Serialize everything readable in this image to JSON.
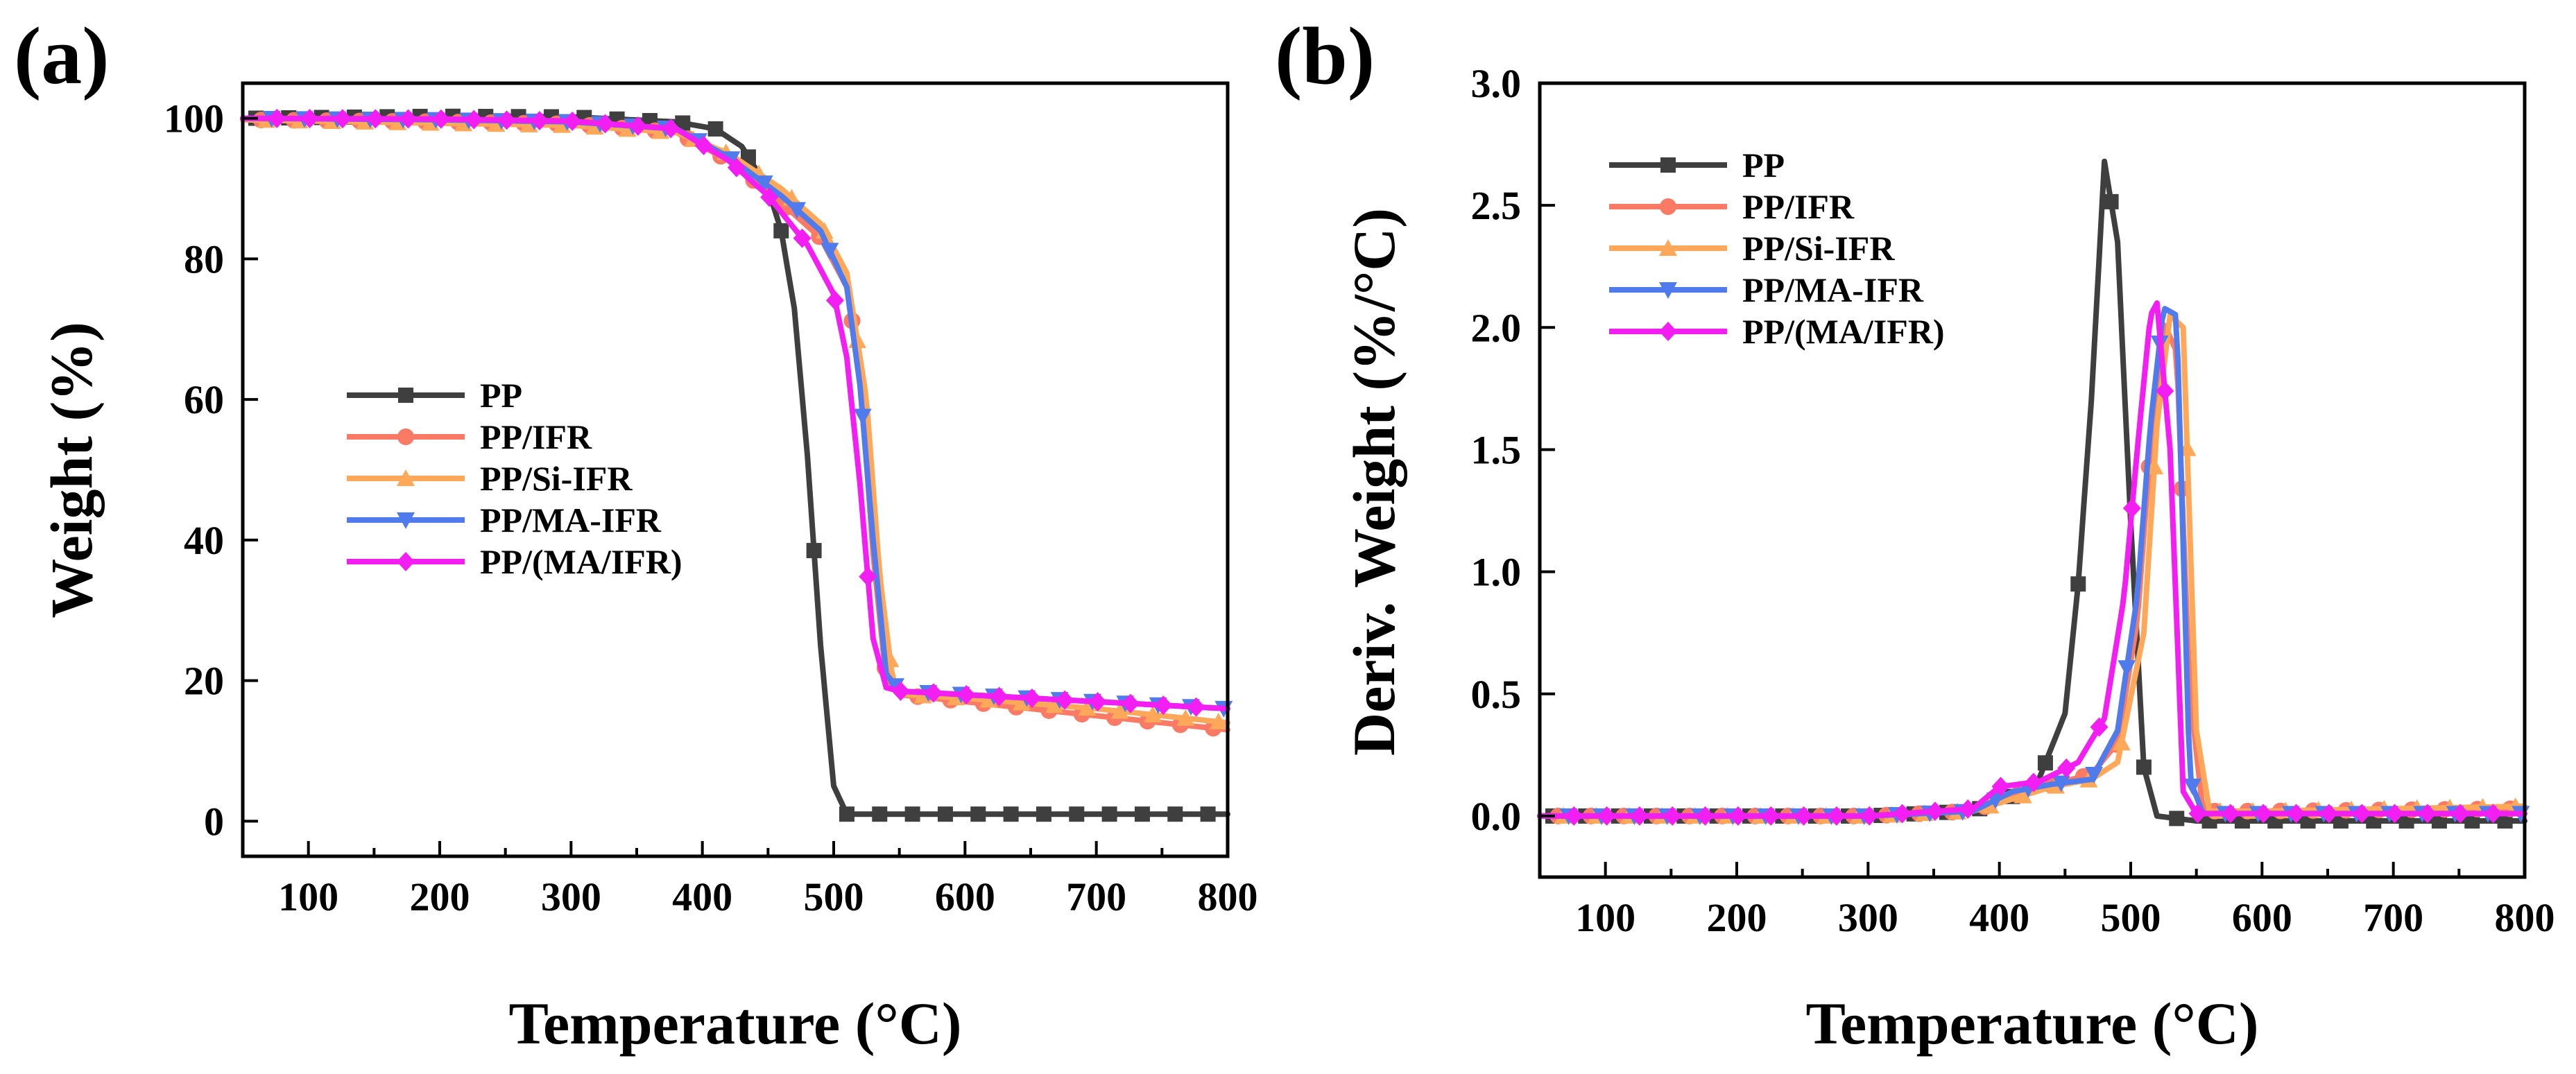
{
  "chart_data": [
    {
      "panel": "(a)",
      "type": "line",
      "xlabel": "Temperature (°C)",
      "ylabel": "Weight (%)",
      "xlim": [
        50,
        800
      ],
      "ylim": [
        -5,
        105
      ],
      "xticks": [
        100,
        200,
        300,
        400,
        500,
        600,
        700,
        800
      ],
      "yticks": [
        0,
        20,
        40,
        60,
        80,
        100
      ],
      "legend": "center-left",
      "series": [
        {
          "name": "PP",
          "color": "#3f3f3f",
          "marker": "square",
          "x": [
            50,
            200,
            300,
            380,
            410,
            430,
            450,
            460,
            470,
            480,
            490,
            500,
            510,
            530,
            600,
            700,
            800
          ],
          "y": [
            100,
            100.3,
            100.2,
            99.5,
            98.5,
            96,
            90,
            84,
            73,
            52,
            25,
            5,
            1,
            1,
            1,
            1,
            1
          ]
        },
        {
          "name": "PP/IFR",
          "color": "#fa7a66",
          "marker": "circle",
          "x": [
            50,
            200,
            300,
            380,
            420,
            460,
            490,
            510,
            520,
            530,
            540,
            550,
            600,
            700,
            800
          ],
          "y": [
            99.8,
            99.5,
            99.2,
            98,
            94,
            88,
            83,
            76,
            64,
            38,
            20,
            18,
            17,
            15,
            13
          ]
        },
        {
          "name": "PP/Si-IFR",
          "color": "#ffa85a",
          "marker": "triangle-up",
          "x": [
            50,
            200,
            300,
            380,
            420,
            460,
            490,
            510,
            525,
            535,
            545,
            555,
            600,
            700,
            800
          ],
          "y": [
            99.8,
            99.3,
            99,
            98,
            95,
            90,
            85,
            78,
            60,
            35,
            20,
            18,
            17.5,
            16,
            14
          ]
        },
        {
          "name": "PP/MA-IFR",
          "color": "#4f7bec",
          "marker": "triangle-down",
          "x": [
            50,
            200,
            300,
            380,
            420,
            460,
            490,
            510,
            520,
            530,
            540,
            550,
            600,
            700,
            800
          ],
          "y": [
            100,
            99.8,
            99.5,
            98.5,
            94.5,
            89,
            84,
            76,
            62,
            40,
            21,
            18.5,
            18,
            17,
            16
          ]
        },
        {
          "name": "PP/(MA/IFR)",
          "color": "#f21ef2",
          "marker": "diamond",
          "x": [
            50,
            200,
            300,
            380,
            420,
            450,
            480,
            500,
            510,
            520,
            530,
            540,
            550,
            600,
            700,
            800
          ],
          "y": [
            100,
            99.9,
            99.6,
            98.5,
            94,
            89,
            82,
            75,
            66,
            48,
            26,
            19,
            18.5,
            18,
            17,
            16
          ]
        }
      ]
    },
    {
      "panel": "(b)",
      "type": "line",
      "xlabel": "Temperature (°C)",
      "ylabel": "Deriv. Weight (%/°C)",
      "xlim": [
        50,
        800
      ],
      "ylim": [
        -0.25,
        3.0
      ],
      "xticks": [
        100,
        200,
        300,
        400,
        500,
        600,
        700,
        800
      ],
      "yticks": [
        "0.0",
        "0.5",
        "1.0",
        "1.5",
        "2.0",
        "2.5",
        "3.0"
      ],
      "legend": "top-left",
      "series": [
        {
          "name": "PP",
          "color": "#3f3f3f",
          "marker": "square",
          "x": [
            50,
            300,
            380,
            410,
            430,
            450,
            460,
            470,
            480,
            490,
            500,
            510,
            520,
            550,
            800
          ],
          "y": [
            0,
            0,
            0.02,
            0.08,
            0.15,
            0.42,
            0.95,
            1.7,
            2.68,
            2.35,
            1.2,
            0.2,
            0,
            -0.02,
            -0.02
          ]
        },
        {
          "name": "PP/IFR",
          "color": "#fa7a66",
          "marker": "circle",
          "x": [
            50,
            300,
            380,
            410,
            440,
            470,
            490,
            505,
            515,
            525,
            535,
            545,
            555,
            600,
            800
          ],
          "y": [
            0,
            0,
            0.02,
            0.08,
            0.13,
            0.17,
            0.3,
            0.8,
            1.5,
            2.02,
            1.9,
            0.5,
            0.02,
            0.02,
            0.03
          ]
        },
        {
          "name": "PP/Si-IFR",
          "color": "#ffa85a",
          "marker": "triangle-up",
          "x": [
            50,
            300,
            380,
            410,
            440,
            470,
            490,
            510,
            520,
            530,
            540,
            550,
            560,
            600,
            800
          ],
          "y": [
            0,
            0,
            0.02,
            0.07,
            0.12,
            0.15,
            0.22,
            0.75,
            1.6,
            2.05,
            2.0,
            0.35,
            0.02,
            0.02,
            0.04
          ]
        },
        {
          "name": "PP/MA-IFR",
          "color": "#4f7bec",
          "marker": "triangle-down",
          "x": [
            50,
            300,
            380,
            410,
            440,
            470,
            490,
            505,
            515,
            525,
            535,
            545,
            555,
            600,
            800
          ],
          "y": [
            0,
            0,
            0.02,
            0.1,
            0.13,
            0.15,
            0.35,
            0.9,
            1.6,
            2.08,
            2.05,
            0.15,
            0.01,
            0.01,
            0.01
          ]
        },
        {
          "name": "PP/(MA/IFR)",
          "color": "#f21ef2",
          "marker": "diamond",
          "x": [
            50,
            300,
            380,
            400,
            430,
            460,
            480,
            495,
            505,
            515,
            520,
            530,
            540,
            550,
            600,
            800
          ],
          "y": [
            0,
            0,
            0.03,
            0.12,
            0.14,
            0.22,
            0.4,
            0.9,
            1.5,
            2.05,
            2.1,
            1.5,
            0.1,
            0.01,
            0.01,
            0.01
          ]
        }
      ]
    }
  ]
}
